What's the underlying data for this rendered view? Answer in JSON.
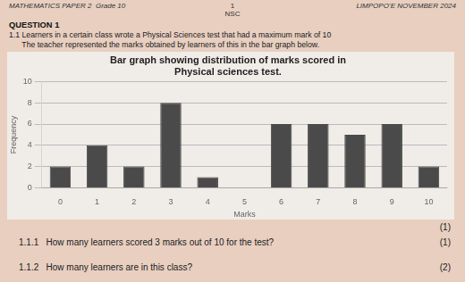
{
  "chart_data": {
    "type": "bar",
    "title": "Bar graph showing distribution of marks scored in\nPhysical sciences test.",
    "x_label": "Marks",
    "y_label": "Frequency",
    "categories": [
      "0",
      "1",
      "2",
      "3",
      "4",
      "5",
      "6",
      "7",
      "8",
      "9",
      "10"
    ],
    "values": [
      2,
      4,
      2,
      8,
      1,
      0,
      6,
      6,
      5,
      6,
      2
    ],
    "color": "#4a4a4a",
    "ylim": [
      0,
      10
    ],
    "yticks": [
      0,
      2,
      4,
      6,
      8,
      10
    ],
    "grid": true,
    "annotations": [
      "MATHEMATICS PAPER 2  Grade 10",
      "1",
      "NSC",
      "LIMPOPO’E NOVEMBER 2024",
      "QUESTION 1",
      "1.1 Learners in a certain class wrote a Physical Sciences test that had a maximum mark of 10",
      "      The teacher represented the marks obtained by learners of this in the bar graph below.",
      "(1)",
      "1.1.1   How many learners scored 3 marks out of 10 for the test?",
      "(1)",
      "1.1.2   How many learners are in this class?",
      "(2)"
    ]
  }
}
